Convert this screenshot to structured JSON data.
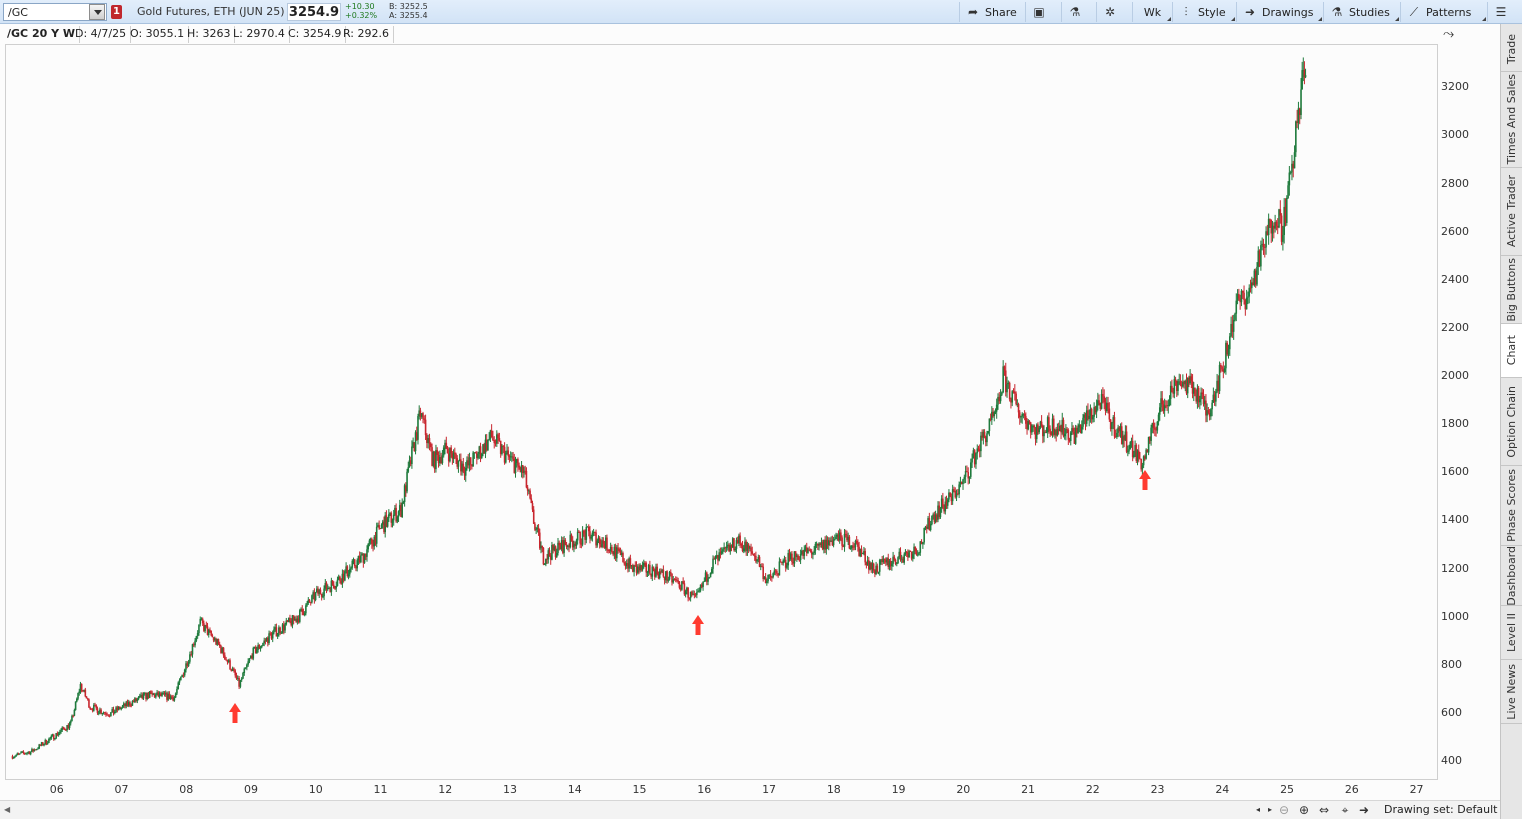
{
  "toolbar": {
    "symbol": "/GC",
    "link_badge": "1",
    "instrument": "Gold Futures, ETH (JUN 25)",
    "last_price": "3254.9",
    "change_abs": "+10.30",
    "change_pct": "+0.32%",
    "bid": "B: 3252.5",
    "ask": "A: 3255.4",
    "buttons": {
      "share": "Share",
      "aggregation": "Wk",
      "style": "Style",
      "drawings": "Drawings",
      "studies": "Studies",
      "patterns": "Patterns"
    }
  },
  "infobar": {
    "title": "/GC 20 Y W",
    "date": "D: 4/7/25",
    "open": "O: 3055.1",
    "high": "H: 3263",
    "low": "L: 2970.4",
    "close": "C: 3254.9",
    "range": "R: 292.6"
  },
  "side_tabs": [
    "Trade",
    "Times And Sales",
    "Active Trader",
    "Big Buttons",
    "Chart",
    "Option Chain",
    "Phase Scores",
    "Dashboard",
    "Level II",
    "Live News"
  ],
  "active_side_tab": "Chart",
  "bottombar": {
    "drawing_set": "Drawing set: Default"
  },
  "colors": {
    "up": "#1e7a3c",
    "down": "#c8262e",
    "arrow": "#ff3b30",
    "accent": "#2b6cb0"
  },
  "chart_data": {
    "type": "candlestick",
    "timeframe": "weekly, 20 years",
    "ylim": [
      330,
      3380
    ],
    "y_ticks": [
      400,
      600,
      800,
      1000,
      1200,
      1400,
      1600,
      1800,
      2000,
      2200,
      2400,
      2600,
      2800,
      3000,
      3200
    ],
    "x_ticks": [
      "06",
      "07",
      "08",
      "09",
      "10",
      "11",
      "12",
      "13",
      "14",
      "15",
      "16",
      "17",
      "18",
      "19",
      "20",
      "21",
      "22",
      "23",
      "24",
      "25",
      "26",
      "27"
    ],
    "xlim": [
      2005.2,
      2027.3
    ],
    "approx_close_path": [
      [
        2005.3,
        425
      ],
      [
        2005.6,
        445
      ],
      [
        2005.9,
        500
      ],
      [
        2006.2,
        560
      ],
      [
        2006.35,
        720
      ],
      [
        2006.5,
        630
      ],
      [
        2006.8,
        600
      ],
      [
        2007.0,
        630
      ],
      [
        2007.4,
        680
      ],
      [
        2007.8,
        670
      ],
      [
        2008.0,
        820
      ],
      [
        2008.2,
        980
      ],
      [
        2008.5,
        880
      ],
      [
        2008.7,
        780
      ],
      [
        2008.8,
        720
      ],
      [
        2009.0,
        850
      ],
      [
        2009.3,
        930
      ],
      [
        2009.7,
        1000
      ],
      [
        2010.0,
        1100
      ],
      [
        2010.3,
        1150
      ],
      [
        2010.7,
        1250
      ],
      [
        2011.0,
        1380
      ],
      [
        2011.3,
        1450
      ],
      [
        2011.6,
        1850
      ],
      [
        2011.8,
        1650
      ],
      [
        2012.0,
        1700
      ],
      [
        2012.3,
        1620
      ],
      [
        2012.7,
        1750
      ],
      [
        2012.9,
        1680
      ],
      [
        2013.2,
        1600
      ],
      [
        2013.35,
        1400
      ],
      [
        2013.5,
        1250
      ],
      [
        2013.8,
        1300
      ],
      [
        2014.2,
        1350
      ],
      [
        2014.5,
        1300
      ],
      [
        2014.9,
        1200
      ],
      [
        2015.2,
        1200
      ],
      [
        2015.6,
        1140
      ],
      [
        2015.85,
        1070
      ],
      [
        2016.1,
        1220
      ],
      [
        2016.5,
        1320
      ],
      [
        2016.8,
        1250
      ],
      [
        2016.95,
        1150
      ],
      [
        2017.3,
        1250
      ],
      [
        2017.7,
        1280
      ],
      [
        2018.0,
        1330
      ],
      [
        2018.3,
        1310
      ],
      [
        2018.6,
        1200
      ],
      [
        2018.9,
        1240
      ],
      [
        2019.3,
        1290
      ],
      [
        2019.5,
        1420
      ],
      [
        2019.8,
        1500
      ],
      [
        2020.0,
        1570
      ],
      [
        2020.2,
        1700
      ],
      [
        2020.5,
        1850
      ],
      [
        2020.6,
        2000
      ],
      [
        2020.8,
        1880
      ],
      [
        2021.1,
        1780
      ],
      [
        2021.4,
        1800
      ],
      [
        2021.7,
        1760
      ],
      [
        2022.1,
        1900
      ],
      [
        2022.3,
        1800
      ],
      [
        2022.6,
        1700
      ],
      [
        2022.75,
        1640
      ],
      [
        2023.0,
        1850
      ],
      [
        2023.3,
        1990
      ],
      [
        2023.6,
        1940
      ],
      [
        2023.75,
        1850
      ],
      [
        2024.0,
        2050
      ],
      [
        2024.2,
        2300
      ],
      [
        2024.4,
        2350
      ],
      [
        2024.6,
        2520
      ],
      [
        2024.8,
        2700
      ],
      [
        2024.9,
        2620
      ],
      [
        2025.0,
        2750
      ],
      [
        2025.1,
        2950
      ],
      [
        2025.2,
        3200
      ],
      [
        2025.27,
        3254.9
      ]
    ],
    "annotations": [
      {
        "type": "arrow-up",
        "x": 2008.75,
        "y": 600
      },
      {
        "type": "arrow-up",
        "x": 2015.9,
        "y": 965
      },
      {
        "type": "arrow-up",
        "x": 2022.8,
        "y": 1570
      }
    ]
  }
}
